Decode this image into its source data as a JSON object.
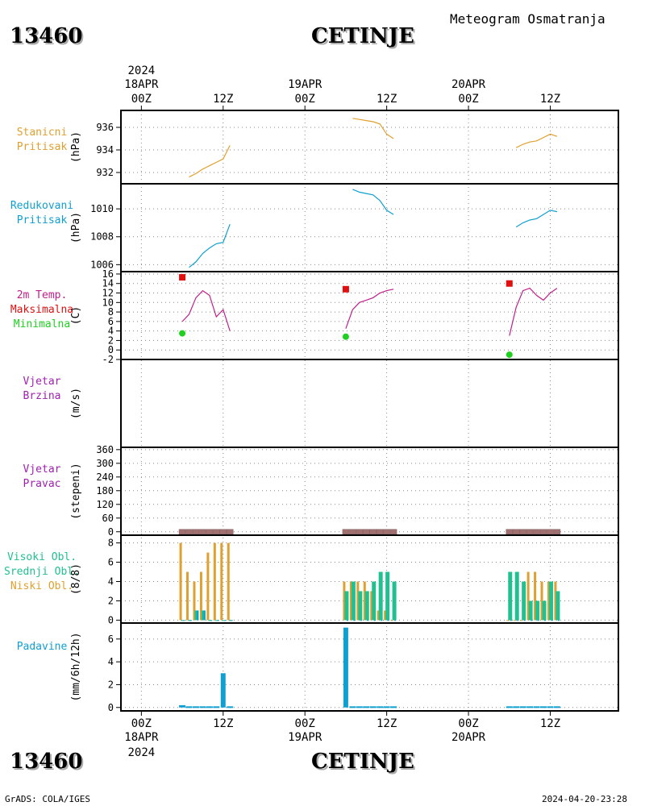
{
  "header": {
    "station_id": "13460",
    "station_name": "CETINJE",
    "title": "Meteogram Osmatranja"
  },
  "footer": {
    "left": "GrADS: COLA/IGES",
    "right": "2024-04-20-23:28"
  },
  "time_axis": {
    "top": [
      {
        "line1": "2024",
        "line2": "18APR",
        "line3": "00Z",
        "hour": 0
      },
      {
        "line1": "",
        "line2": "",
        "line3": "12Z",
        "hour": 12
      },
      {
        "line1": "",
        "line2": "19APR",
        "line3": "00Z",
        "hour": 24
      },
      {
        "line1": "",
        "line2": "",
        "line3": "12Z",
        "hour": 36
      },
      {
        "line1": "",
        "line2": "20APR",
        "line3": "00Z",
        "hour": 48
      },
      {
        "line1": "",
        "line2": "",
        "line3": "12Z",
        "hour": 60
      }
    ],
    "bottom": [
      {
        "line1": "00Z",
        "line2": "18APR",
        "line3": "2024",
        "hour": 0
      },
      {
        "line1": "12Z",
        "line2": "",
        "line3": "",
        "hour": 12
      },
      {
        "line1": "00Z",
        "line2": "19APR",
        "line3": "",
        "hour": 24
      },
      {
        "line1": "12Z",
        "line2": "",
        "line3": "",
        "hour": 36
      },
      {
        "line1": "00Z",
        "line2": "20APR",
        "line3": "",
        "hour": 48
      },
      {
        "line1": "12Z",
        "line2": "",
        "line3": "",
        "hour": 60
      }
    ],
    "range_hours": [
      -3,
      70
    ]
  },
  "colors": {
    "orange": "#e0a030",
    "cyan": "#10a0d0",
    "magenta": "#c0208a",
    "red": "#e01010",
    "green": "#20d020",
    "purple": "#a020b0",
    "teal": "#20c090",
    "brown": "#a07070",
    "grid": "#888888"
  },
  "panels": {
    "station_pressure": {
      "label1": "Stanicni",
      "label2": "Pritisak",
      "label3": "",
      "unit": "(hPa)"
    },
    "reduced_pressure": {
      "label1": "Redukovani",
      "label2": "Pritisak",
      "label3": "",
      "unit": "(hPa)"
    },
    "temperature": {
      "label1": "2m Temp.",
      "label2": "Maksimalna",
      "label3": "Minimalna",
      "unit": "(C)"
    },
    "wind_speed": {
      "label1": "Vjetar",
      "label2": "Brzina",
      "label3": "",
      "unit": "(m/s)"
    },
    "wind_direction": {
      "label1": "Vjetar",
      "label2": "Pravac",
      "label3": "",
      "unit": "(stepeni)"
    },
    "clouds": {
      "label1": "Visoki Obl.",
      "label2": "Srednji Obl.",
      "label3": "Niski Obl.",
      "unit": "(8/8)"
    },
    "precipitation": {
      "label1": "Padavine",
      "label2": "",
      "label3": "",
      "unit": "(mm/6h/12h)"
    }
  },
  "chart_data": [
    {
      "name": "station_pressure",
      "type": "line",
      "ylabel": "(hPa)",
      "ylim": [
        931,
        937.5
      ],
      "yticks": [
        932,
        934,
        936
      ],
      "series": [
        {
          "x": [
            7,
            8,
            9,
            10,
            11,
            12,
            13
          ],
          "values": [
            931.6,
            931.9,
            932.3,
            932.6,
            932.9,
            933.2,
            934.4
          ]
        },
        {
          "x": [
            31,
            32,
            33,
            34,
            35,
            36,
            37
          ],
          "values": [
            936.8,
            936.7,
            936.6,
            936.5,
            936.3,
            935.4,
            935.0
          ]
        },
        {
          "x": [
            55,
            56,
            57,
            58,
            59,
            60,
            61
          ],
          "values": [
            934.2,
            934.5,
            934.7,
            934.8,
            935.1,
            935.4,
            935.2
          ]
        }
      ]
    },
    {
      "name": "reduced_pressure",
      "type": "line",
      "ylabel": "(hPa)",
      "ylim": [
        1005.5,
        1011.8
      ],
      "yticks": [
        1006,
        1008,
        1010
      ],
      "series": [
        {
          "x": [
            7,
            8,
            9,
            10,
            11,
            12,
            13
          ],
          "values": [
            1005.8,
            1006.2,
            1006.8,
            1007.2,
            1007.5,
            1007.6,
            1008.9
          ]
        },
        {
          "x": [
            31,
            32,
            33,
            34,
            35,
            36,
            37
          ],
          "values": [
            1011.4,
            1011.2,
            1011.1,
            1011.0,
            1010.6,
            1009.9,
            1009.6
          ]
        },
        {
          "x": [
            55,
            56,
            57,
            58,
            59,
            60,
            61
          ],
          "values": [
            1008.7,
            1009.0,
            1009.2,
            1009.3,
            1009.6,
            1009.9,
            1009.8
          ]
        }
      ]
    },
    {
      "name": "temperature",
      "type": "line",
      "ylabel": "(C)",
      "ylim": [
        -2,
        16.5
      ],
      "yticks": [
        -2,
        0,
        2,
        4,
        6,
        8,
        10,
        12,
        14,
        16
      ],
      "series": [
        {
          "name": "temp",
          "x": [
            6,
            7,
            8,
            9,
            10,
            11,
            12,
            13
          ],
          "values": [
            6.0,
            7.5,
            11.0,
            12.5,
            11.5,
            7.0,
            8.5,
            4.0
          ]
        },
        {
          "name": "temp",
          "x": [
            30,
            31,
            32,
            33,
            34,
            35,
            36,
            37
          ],
          "values": [
            4.5,
            8.5,
            10.0,
            10.5,
            11.0,
            12.0,
            12.5,
            12.8
          ]
        },
        {
          "name": "temp",
          "x": [
            54,
            55,
            56,
            57,
            58,
            59,
            60,
            61
          ],
          "values": [
            3.0,
            9.0,
            12.5,
            13.0,
            11.5,
            10.5,
            12.0,
            13.0
          ]
        }
      ],
      "max_points": [
        {
          "x": 6,
          "value": 15.3
        },
        {
          "x": 30,
          "value": 12.8
        },
        {
          "x": 54,
          "value": 14.0
        }
      ],
      "min_points": [
        {
          "x": 6,
          "value": 3.5
        },
        {
          "x": 30,
          "value": 2.8
        },
        {
          "x": 54,
          "value": -1.0
        }
      ]
    },
    {
      "name": "wind_speed",
      "type": "line",
      "ylabel": "(m/s)",
      "series": []
    },
    {
      "name": "wind_direction",
      "type": "scatter",
      "ylabel": "(stepeni)",
      "ylim": [
        -15,
        370
      ],
      "yticks": [
        0,
        60,
        120,
        180,
        240,
        300,
        360
      ],
      "x": [
        6,
        7,
        8,
        9,
        10,
        11,
        12,
        13,
        30,
        31,
        32,
        33,
        34,
        35,
        36,
        37,
        54,
        55,
        56,
        57,
        58,
        59,
        60,
        61
      ],
      "values": [
        0,
        0,
        0,
        0,
        0,
        0,
        0,
        0,
        0,
        0,
        0,
        0,
        0,
        0,
        0,
        0,
        0,
        0,
        0,
        0,
        0,
        0,
        0,
        0
      ]
    },
    {
      "name": "clouds",
      "type": "bar",
      "ylabel": "(8/8)",
      "ylim": [
        -0.3,
        8.8
      ],
      "yticks": [
        0,
        2,
        4,
        6,
        8
      ],
      "x": [
        6,
        7,
        8,
        9,
        10,
        11,
        12,
        13,
        30,
        31,
        32,
        33,
        34,
        35,
        36,
        37,
        54,
        55,
        56,
        57,
        58,
        59,
        60,
        61
      ],
      "series": [
        {
          "name": "Niski Obl.",
          "values": [
            8,
            5,
            4,
            5,
            7,
            8,
            8,
            8,
            4,
            4,
            4,
            4,
            3,
            1,
            1,
            0,
            0,
            0,
            0,
            5,
            5,
            4,
            4,
            4
          ]
        },
        {
          "name": "Srednji Obl.",
          "values": [
            0,
            0,
            1,
            1,
            0,
            0,
            0,
            0,
            3,
            4,
            3,
            3,
            4,
            5,
            5,
            4,
            5,
            5,
            4,
            2,
            2,
            2,
            4,
            3
          ]
        },
        {
          "name": "Visoki Obl.",
          "values": [
            0,
            0,
            1,
            1,
            0,
            0,
            0,
            0,
            0,
            0,
            0,
            0,
            0,
            0,
            0,
            0,
            0,
            0,
            0,
            0,
            0,
            0,
            0,
            0
          ]
        }
      ]
    },
    {
      "name": "precipitation",
      "type": "bar",
      "ylabel": "(mm/6h/12h)",
      "ylim": [
        -0.3,
        7.4
      ],
      "yticks": [
        0,
        2,
        4,
        6
      ],
      "x": [
        6,
        7,
        8,
        9,
        10,
        11,
        12,
        13,
        30,
        31,
        32,
        33,
        34,
        35,
        36,
        37,
        54,
        55,
        56,
        57,
        58,
        59,
        60,
        61
      ],
      "values": [
        0.2,
        0.1,
        0.1,
        0.1,
        0.1,
        0.1,
        3.0,
        0.1,
        7.0,
        0.1,
        0.1,
        0.1,
        0.1,
        0.1,
        0.1,
        0.1,
        0.1,
        0.1,
        0.1,
        0.1,
        0.1,
        0.1,
        0.1,
        0.1
      ]
    }
  ]
}
